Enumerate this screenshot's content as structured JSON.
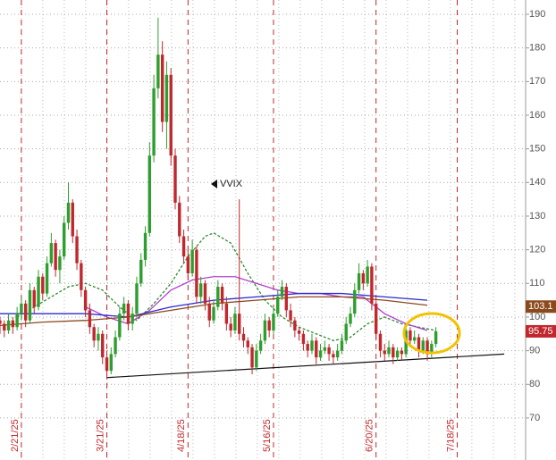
{
  "chart_data": {
    "type": "candlestick",
    "annotation": "VVIX",
    "xlim": [
      0,
      123
    ],
    "ylim": [
      57.5,
      194.25
    ],
    "xticks": [
      {
        "value": 5,
        "label": "2/21/25"
      },
      {
        "value": 25,
        "label": "3/21/25"
      },
      {
        "value": 44,
        "label": "4/18/25"
      },
      {
        "value": 64,
        "label": "5/16/25"
      },
      {
        "value": 88,
        "label": "6/20/25"
      },
      {
        "value": 107,
        "label": "7/18/25"
      }
    ],
    "yticks": [
      70,
      80,
      90,
      100,
      110,
      120,
      130,
      140,
      150,
      160,
      170,
      180,
      190
    ],
    "grid": true,
    "up_color": "#2e9e2e",
    "down_color": "#c0282d",
    "ohlc": [
      [
        99,
        100,
        95,
        98
      ],
      [
        98,
        99,
        94,
        96
      ],
      [
        96,
        101,
        95,
        99
      ],
      [
        99,
        100,
        95,
        97
      ],
      [
        97,
        103,
        96,
        101
      ],
      [
        101,
        106,
        99,
        104
      ],
      [
        104,
        105,
        97,
        99
      ],
      [
        99,
        110,
        98,
        108
      ],
      [
        108,
        109,
        101,
        103
      ],
      [
        103,
        114,
        102,
        112
      ],
      [
        112,
        113,
        105,
        107
      ],
      [
        107,
        118,
        106,
        116
      ],
      [
        116,
        125,
        115,
        122
      ],
      [
        122,
        123,
        112,
        114
      ],
      [
        114,
        120,
        110,
        118
      ],
      [
        118,
        130,
        117,
        128
      ],
      [
        128,
        140,
        126,
        134
      ],
      [
        134,
        135,
        122,
        124
      ],
      [
        124,
        126,
        114,
        116
      ],
      [
        116,
        117,
        106,
        108
      ],
      [
        108,
        109,
        100,
        102
      ],
      [
        102,
        104,
        95,
        97
      ],
      [
        97,
        98,
        91,
        93
      ],
      [
        93,
        97,
        90,
        95
      ],
      [
        95,
        96,
        86,
        88
      ],
      [
        88,
        90,
        81.5,
        84
      ],
      [
        84,
        91,
        83,
        89
      ],
      [
        89,
        96,
        88,
        94
      ],
      [
        94,
        103,
        93,
        101
      ],
      [
        101,
        106,
        99,
        104
      ],
      [
        104,
        105,
        96,
        98
      ],
      [
        98,
        103,
        96,
        101
      ],
      [
        101,
        112,
        100,
        110
      ],
      [
        110,
        119,
        109,
        117
      ],
      [
        117,
        127,
        115,
        125
      ],
      [
        125,
        152,
        124,
        148
      ],
      [
        148,
        172,
        146,
        168
      ],
      [
        168,
        189,
        165,
        178
      ],
      [
        178,
        182,
        155,
        158
      ],
      [
        158,
        176,
        150,
        172
      ],
      [
        172,
        174,
        145,
        148
      ],
      [
        148,
        150,
        132,
        134
      ],
      [
        134,
        136,
        122,
        124
      ],
      [
        124,
        126,
        116,
        118
      ],
      [
        118,
        120,
        111,
        113
      ],
      [
        113,
        123,
        112,
        120
      ],
      [
        120,
        121,
        104,
        106
      ],
      [
        106,
        112,
        104,
        110
      ],
      [
        110,
        111,
        102,
        104
      ],
      [
        104,
        106,
        97,
        99
      ],
      [
        99,
        105,
        98,
        103
      ],
      [
        103,
        111,
        102,
        109
      ],
      [
        109,
        110,
        102,
        104
      ],
      [
        104,
        106,
        96,
        98
      ],
      [
        98,
        100,
        94,
        96
      ],
      [
        96,
        103,
        95,
        101
      ],
      [
        101,
        135,
        93,
        95
      ],
      [
        95,
        97,
        91,
        93
      ],
      [
        93,
        94,
        89,
        91
      ],
      [
        91,
        92,
        83,
        85
      ],
      [
        85,
        92,
        84,
        90
      ],
      [
        90,
        95,
        89,
        93
      ],
      [
        93,
        101,
        92,
        99
      ],
      [
        99,
        100,
        94,
        96
      ],
      [
        96,
        103,
        95,
        101
      ],
      [
        101,
        108,
        100,
        106
      ],
      [
        106,
        111,
        105,
        109
      ],
      [
        109,
        110,
        100,
        102
      ],
      [
        102,
        104,
        97,
        99
      ],
      [
        99,
        100,
        94,
        96
      ],
      [
        96,
        97,
        93,
        95
      ],
      [
        95,
        96,
        90,
        92
      ],
      [
        92,
        93,
        88,
        90
      ],
      [
        90,
        95,
        89,
        93
      ],
      [
        93,
        94,
        86,
        88
      ],
      [
        88,
        92,
        87,
        90
      ],
      [
        90,
        93,
        89,
        91
      ],
      [
        91,
        92,
        87,
        89
      ],
      [
        89,
        90,
        86,
        88
      ],
      [
        88,
        92,
        87,
        90
      ],
      [
        90,
        95,
        89,
        93
      ],
      [
        93,
        100,
        92,
        98
      ],
      [
        98,
        103,
        97,
        101
      ],
      [
        101,
        110,
        100,
        108
      ],
      [
        108,
        116,
        107,
        113
      ],
      [
        113,
        114,
        108,
        110
      ],
      [
        110,
        117,
        109,
        115
      ],
      [
        115,
        116,
        102,
        104
      ],
      [
        104,
        105,
        93,
        95
      ],
      [
        95,
        96,
        88,
        90
      ],
      [
        90,
        92,
        87,
        89
      ],
      [
        89,
        93,
        88,
        91
      ],
      [
        91,
        92,
        86,
        88
      ],
      [
        88,
        91,
        87,
        90
      ],
      [
        90,
        91,
        87,
        89
      ],
      [
        89,
        98,
        88,
        96
      ],
      [
        96,
        97,
        91,
        93
      ],
      [
        93,
        96,
        92,
        94
      ],
      [
        94,
        95,
        88,
        90
      ],
      [
        90,
        94,
        89,
        93
      ],
      [
        93,
        94,
        87,
        89
      ],
      [
        89,
        93,
        88,
        92
      ],
      [
        92,
        97,
        91,
        95.75
      ]
    ],
    "lines": [
      {
        "color": "#2e8b2e",
        "dashed": true,
        "x": [
          4,
          8,
          12,
          16,
          20,
          24,
          28,
          32,
          36,
          40,
          44,
          48,
          50,
          54,
          58,
          62,
          66,
          70,
          74,
          78,
          82,
          86,
          90,
          94,
          98,
          102
        ],
        "values": [
          100,
          103,
          106,
          109,
          110,
          108,
          103,
          99,
          104,
          110,
          118,
          124,
          125,
          122,
          113,
          105,
          100,
          97,
          95,
          93,
          94,
          98,
          100,
          98,
          97,
          96
        ]
      },
      {
        "color": "#b040d0",
        "dashed": false,
        "x": [
          20,
          25,
          30,
          35,
          40,
          45,
          50,
          55,
          60,
          65,
          70,
          75,
          80,
          85,
          90,
          95,
          100
        ],
        "values": [
          103,
          100,
          98,
          102,
          108,
          111,
          112,
          112,
          110,
          108,
          107,
          107,
          106,
          106,
          101,
          98,
          96
        ]
      },
      {
        "color": "#2a2ad0",
        "dashed": false,
        "x": [
          0,
          10,
          20,
          30,
          40,
          50,
          60,
          70,
          80,
          90,
          100
        ],
        "values": [
          101,
          101,
          101,
          100,
          103,
          105,
          106,
          107,
          107,
          106,
          105
        ]
      },
      {
        "color": "#8b4a1c",
        "dashed": false,
        "x": [
          0,
          10,
          20,
          30,
          40,
          50,
          60,
          70,
          80,
          90,
          100
        ],
        "values": [
          97.5,
          98.5,
          99,
          100,
          102,
          104,
          105,
          106,
          106,
          105,
          103.5
        ]
      }
    ],
    "trendline": {
      "x": [
        25,
        118
      ],
      "values": [
        82,
        89
      ]
    },
    "price_labels": [
      {
        "value": 103.1,
        "color": "#8b4a1c"
      },
      {
        "value": 95.75,
        "color": "#c0282d"
      }
    ]
  }
}
